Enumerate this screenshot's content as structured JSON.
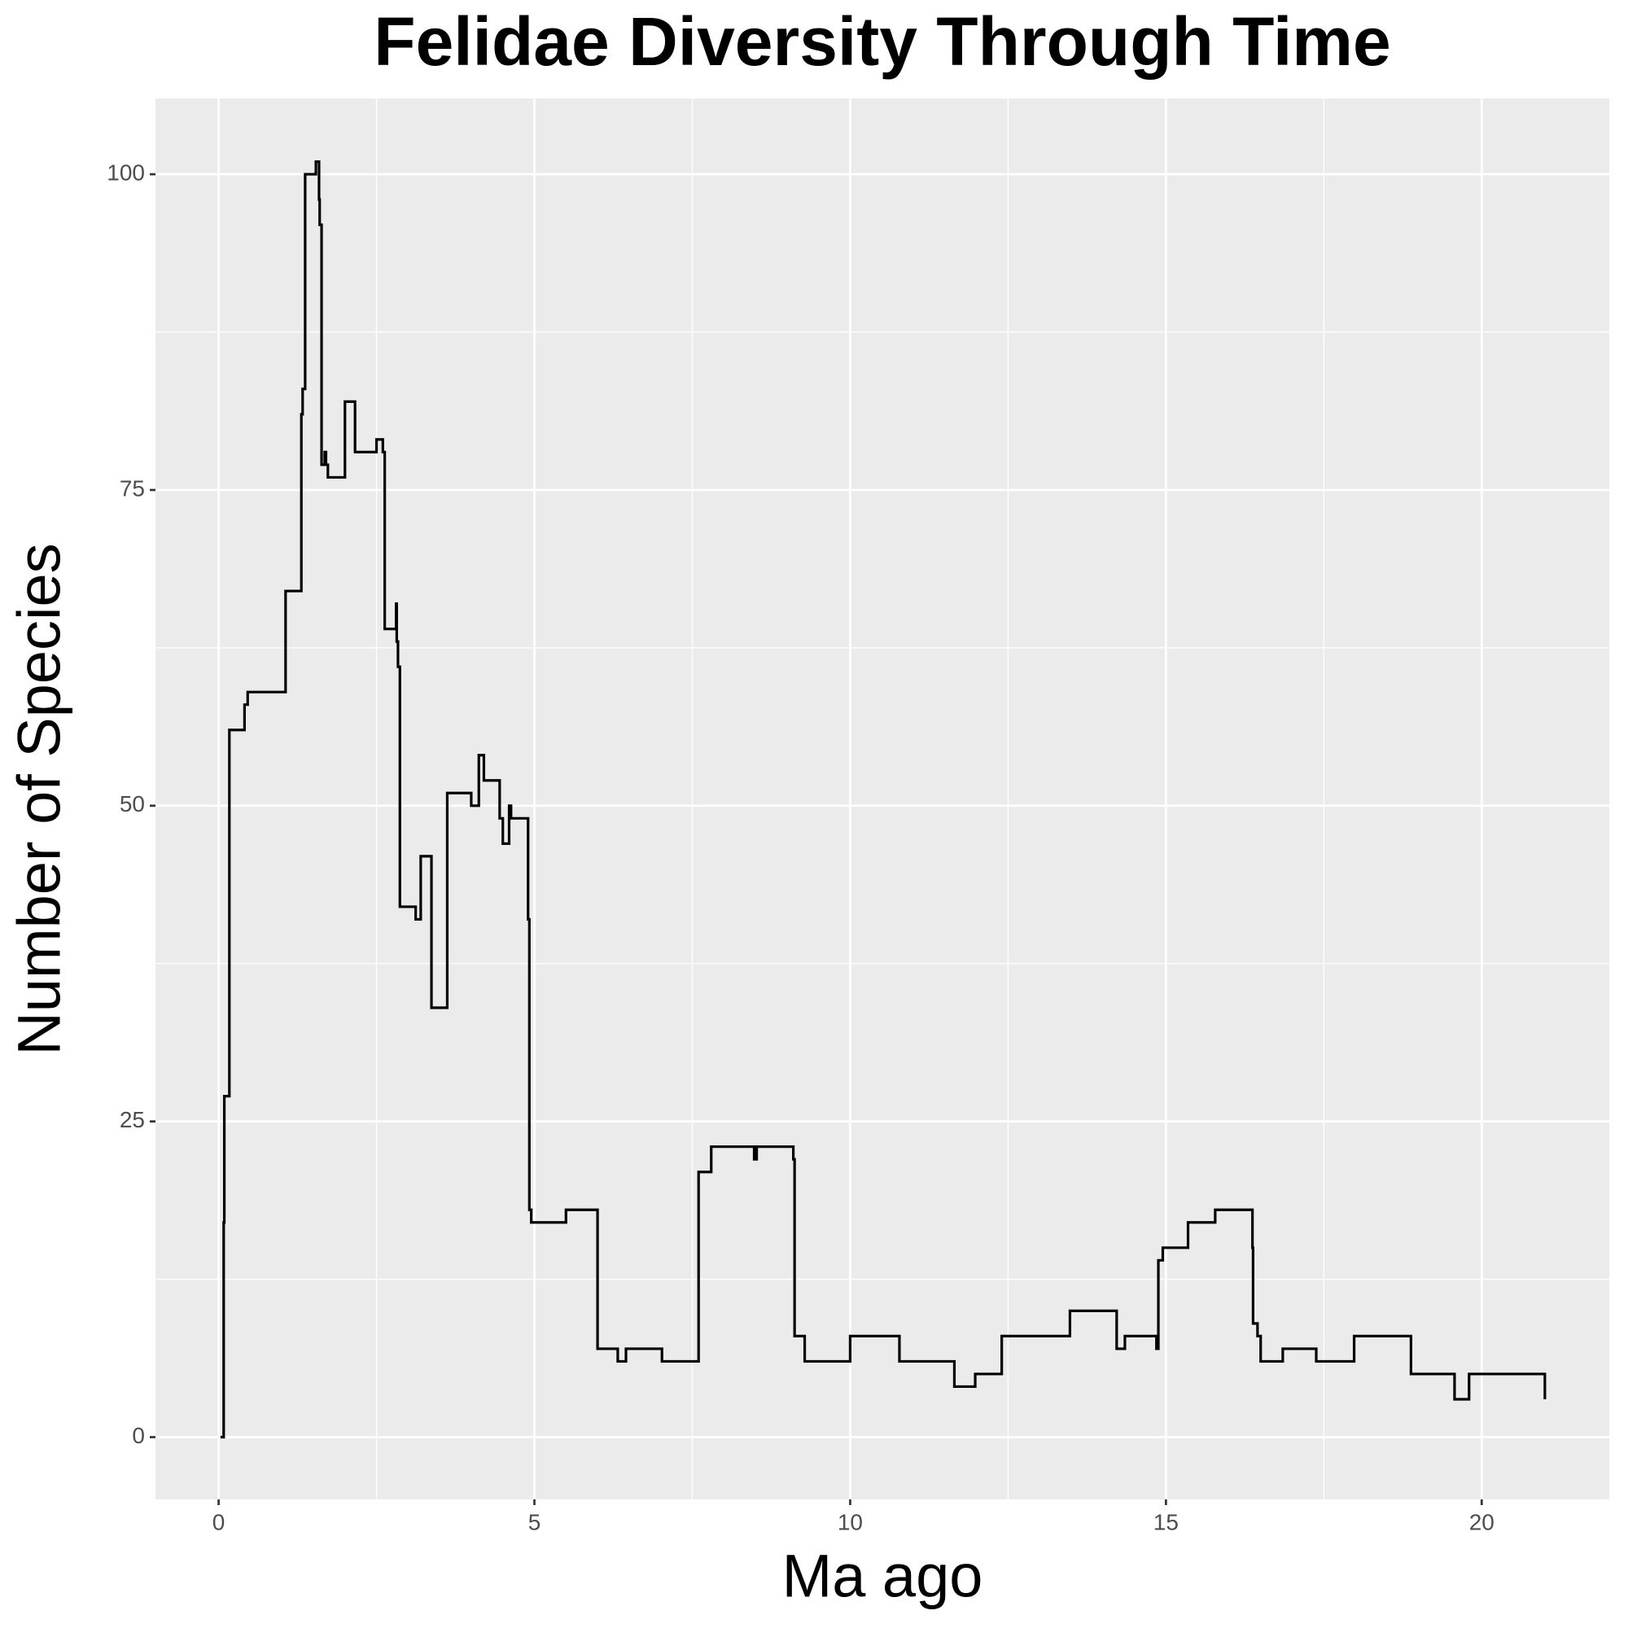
{
  "chart_data": {
    "type": "line",
    "drawstyle": "steps-post",
    "title": "Felidae Diversity Through Time",
    "xlabel": "Ma ago",
    "ylabel": "Number of Species",
    "x": [
      0.03,
      0.08,
      0.09,
      0.17,
      0.41,
      0.46,
      1.06,
      1.31,
      1.33,
      1.37,
      1.54,
      1.59,
      1.6,
      1.63,
      1.68,
      1.7,
      1.73,
      2.0,
      2.16,
      2.5,
      2.6,
      2.63,
      2.81,
      2.82,
      2.84,
      2.87,
      3.12,
      3.2,
      3.37,
      3.62,
      4.0,
      4.12,
      4.2,
      4.45,
      4.5,
      4.6,
      4.63,
      4.9,
      4.92,
      4.95,
      5.5,
      6.0,
      6.32,
      6.45,
      7.02,
      7.6,
      7.8,
      8.48,
      8.52,
      9.1,
      9.12,
      9.28,
      10.0,
      10.78,
      11.65,
      11.98,
      12.4,
      13.48,
      14.22,
      14.35,
      14.85,
      14.88,
      14.95,
      15.35,
      15.78,
      16.37,
      16.38,
      16.45,
      16.5,
      16.85,
      17.38,
      17.98,
      18.88,
      19.57,
      19.8,
      21.0
    ],
    "values": [
      0,
      17,
      27,
      56,
      58,
      59,
      67,
      81,
      83,
      100,
      101,
      98,
      96,
      77,
      78,
      77,
      76,
      82,
      78,
      79,
      78,
      64,
      66,
      63,
      61,
      42,
      41,
      46,
      34,
      51,
      50,
      54,
      52,
      49,
      47,
      50,
      49,
      41,
      18,
      17,
      18,
      7,
      6,
      7,
      6,
      21,
      23,
      22,
      23,
      22,
      8,
      6,
      8,
      6,
      4,
      5,
      8,
      10,
      7,
      8,
      7,
      14,
      15,
      17,
      18,
      15,
      9,
      8,
      6,
      7,
      6,
      8,
      5,
      3,
      5,
      3
    ],
    "color": "#000000",
    "xlim": [
      -1.0,
      22.02
    ],
    "ylim": [
      -4.93,
      106.0
    ],
    "xticks": [
      0,
      5,
      10,
      15,
      20
    ],
    "yticks": [
      0,
      25,
      50,
      75,
      100
    ],
    "grid": true
  }
}
